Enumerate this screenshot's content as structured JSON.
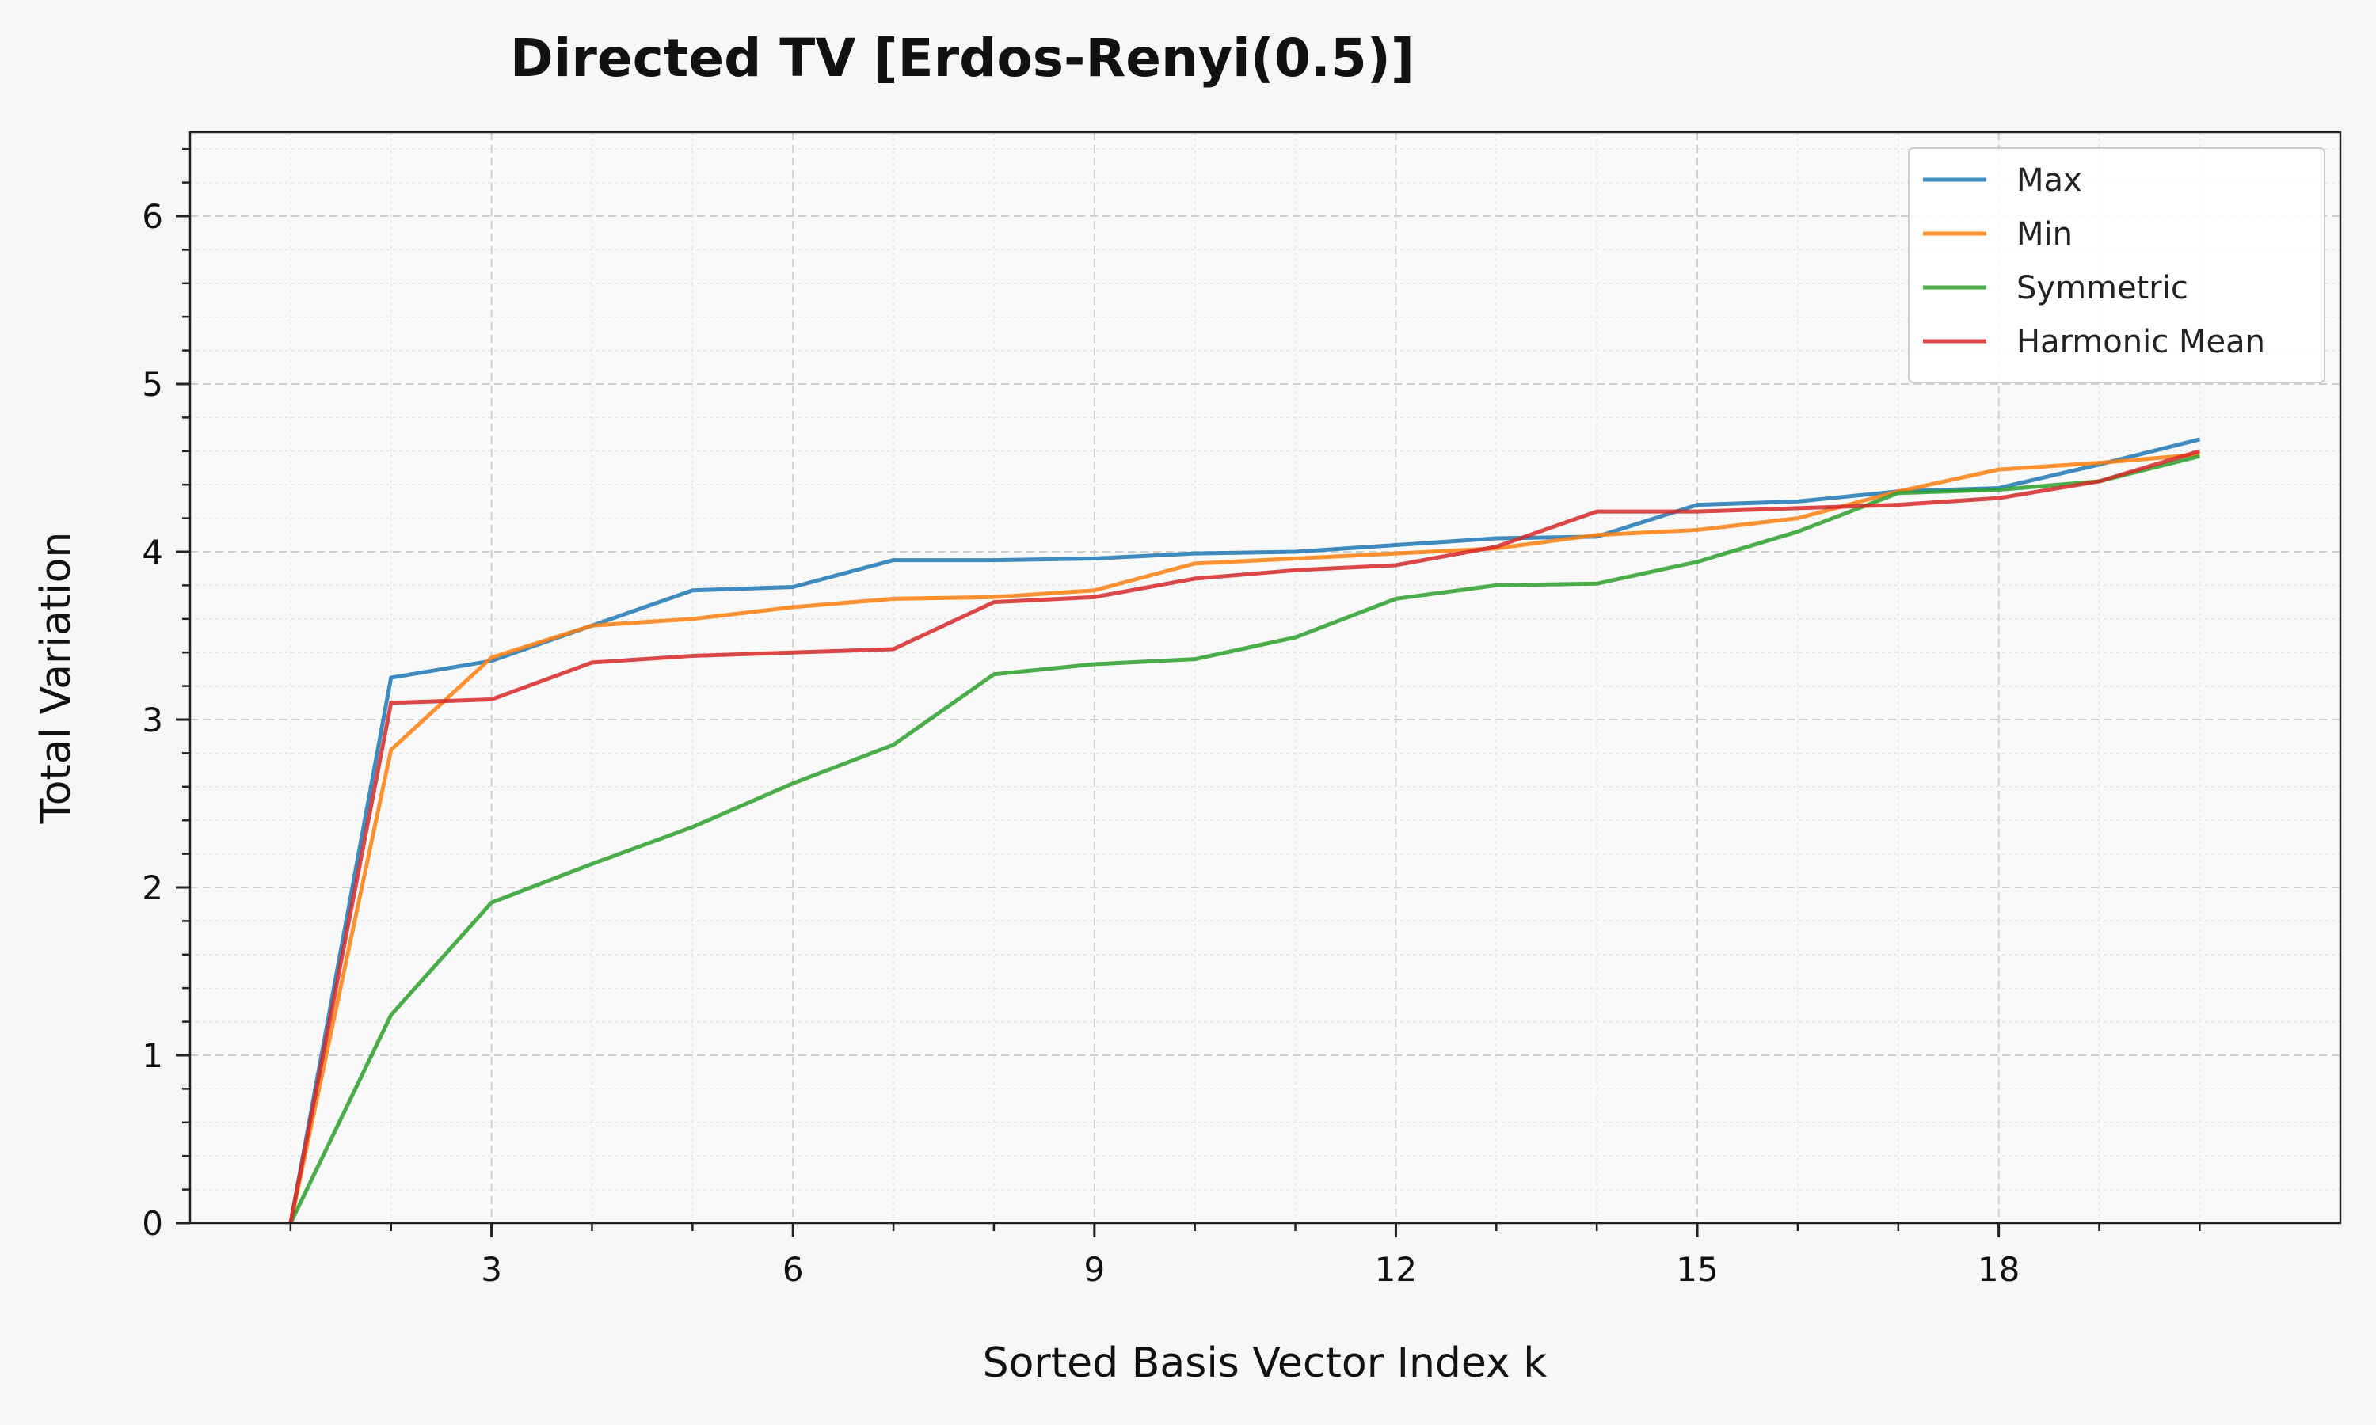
{
  "chart_data": {
    "type": "line",
    "title": "Directed TV [Erdos-Renyi(0.5)]",
    "xlabel": "Sorted Basis Vector Index k",
    "ylabel": "Total Variation",
    "xlim": [
      0,
      21.4
    ],
    "ylim": [
      0,
      6.5
    ],
    "xticks": [
      3,
      6,
      9,
      12,
      15,
      18
    ],
    "yticks": [
      0,
      1,
      2,
      3,
      4,
      5,
      6
    ],
    "grid": true,
    "legend_position": "top-right",
    "x": [
      1,
      2,
      3,
      4,
      5,
      6,
      7,
      8,
      9,
      10,
      11,
      12,
      13,
      14,
      15,
      16,
      17,
      18,
      19,
      20
    ],
    "series": [
      {
        "name": "Max",
        "color": "#1f77b4",
        "values": [
          0.0,
          3.25,
          3.35,
          3.56,
          3.77,
          3.79,
          3.95,
          3.95,
          3.96,
          3.99,
          4.0,
          4.04,
          4.08,
          4.09,
          4.28,
          4.3,
          4.36,
          4.38,
          4.52,
          4.67
        ]
      },
      {
        "name": "Min",
        "color": "#ff7f0e",
        "values": [
          0.0,
          2.82,
          3.37,
          3.56,
          3.6,
          3.67,
          3.72,
          3.73,
          3.77,
          3.93,
          3.96,
          3.99,
          4.02,
          4.1,
          4.13,
          4.2,
          4.36,
          4.49,
          4.53,
          4.58
        ]
      },
      {
        "name": "Symmetric",
        "color": "#2ca02c",
        "values": [
          0.0,
          1.24,
          1.91,
          2.14,
          2.36,
          2.62,
          2.85,
          3.27,
          3.33,
          3.36,
          3.49,
          3.72,
          3.8,
          3.81,
          3.94,
          4.12,
          4.35,
          4.37,
          4.42,
          4.57
        ]
      },
      {
        "name": "Harmonic Mean",
        "color": "#d62728",
        "values": [
          0.0,
          3.1,
          3.12,
          3.34,
          3.38,
          3.4,
          3.42,
          3.7,
          3.73,
          3.84,
          3.89,
          3.92,
          4.03,
          4.24,
          4.24,
          4.26,
          4.28,
          4.32,
          4.42,
          4.6
        ]
      }
    ]
  }
}
